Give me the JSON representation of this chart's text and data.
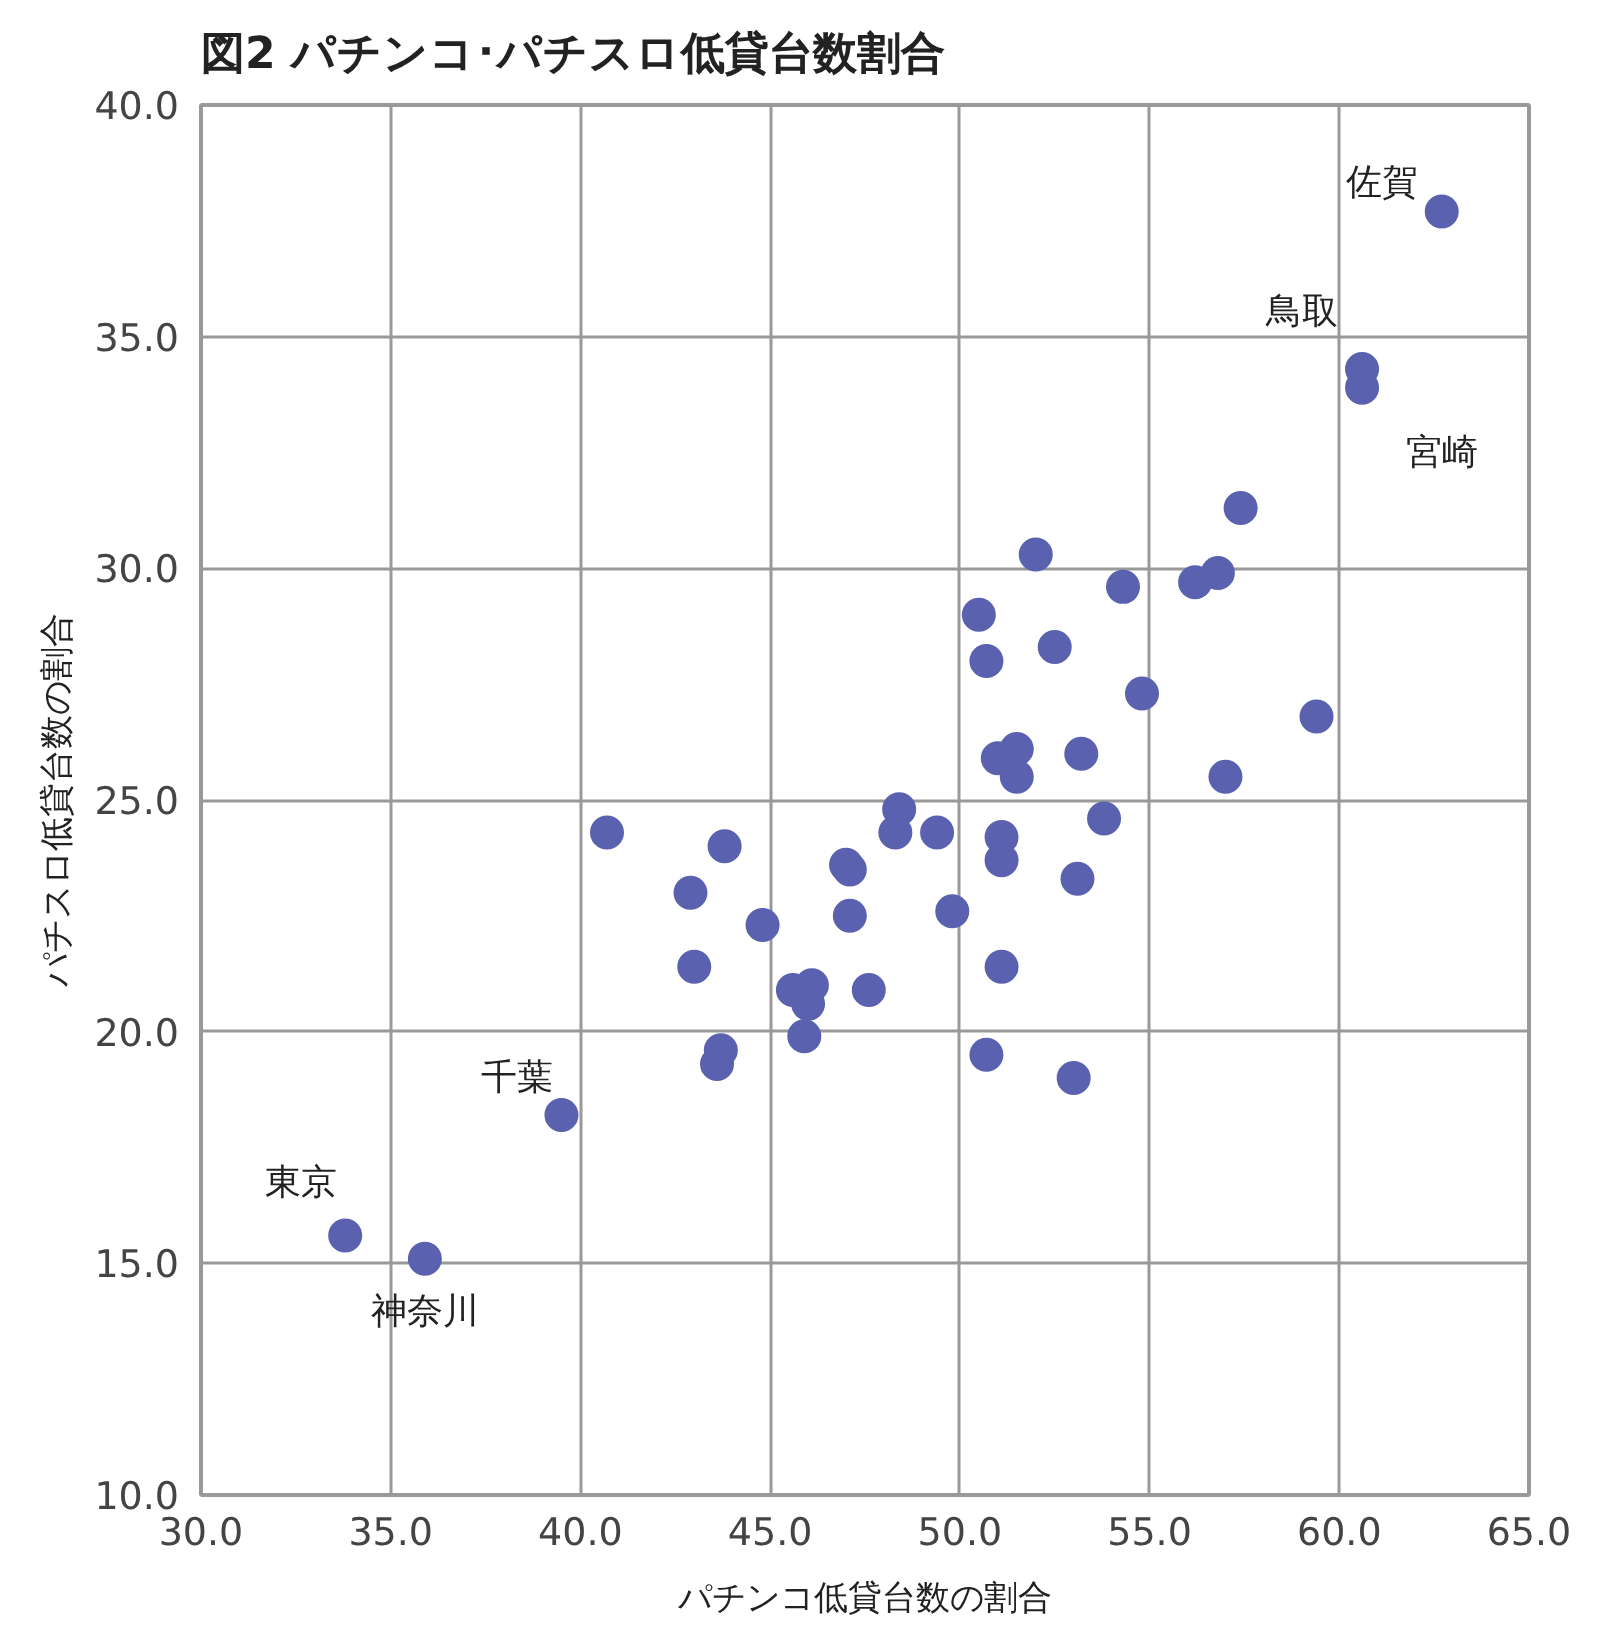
{
  "chart_data": {
    "type": "scatter",
    "title": "図2  パチンコ･パチスロ低貸台数割合",
    "xlabel": "パチンコ低貸台数の割合",
    "ylabel": "パチスロ低貸台数の割合",
    "x": [
      62.7,
      60.6,
      60.6,
      57.4,
      52.0,
      54.3,
      56.2,
      56.8,
      50.5,
      50.7,
      52.5,
      54.8,
      59.4,
      51.0,
      51.5,
      51.5,
      53.2,
      57.0,
      40.7,
      43.8,
      42.9,
      43.0,
      44.8,
      48.4,
      48.3,
      49.4,
      47.0,
      47.1,
      47.1,
      49.8,
      51.1,
      51.1,
      53.8,
      53.1,
      51.1,
      45.6,
      46.1,
      46.0,
      47.6,
      45.9,
      43.7,
      43.6,
      50.7,
      53.0,
      39.5,
      33.8,
      35.9
    ],
    "series": [
      {
        "color": "#5a62b0",
        "values": [
          37.7,
          34.3,
          33.9,
          31.3,
          30.3,
          29.6,
          29.7,
          29.9,
          29.0,
          28.0,
          28.3,
          27.3,
          26.8,
          25.9,
          26.1,
          25.5,
          26.0,
          25.5,
          24.3,
          24.0,
          23.0,
          21.4,
          22.3,
          24.8,
          24.3,
          24.3,
          23.6,
          23.5,
          22.5,
          22.6,
          24.2,
          23.7,
          24.6,
          23.3,
          21.4,
          20.9,
          21.0,
          20.6,
          20.9,
          19.9,
          19.6,
          19.3,
          19.5,
          19.0,
          18.2,
          15.6,
          15.1
        ]
      }
    ],
    "xlim": [
      30,
      65
    ],
    "ylim": [
      10,
      40
    ],
    "xticks": [
      {
        "value": 30,
        "label": "30.0"
      },
      {
        "value": 35,
        "label": "35.0"
      },
      {
        "value": 40,
        "label": "40.0"
      },
      {
        "value": 45,
        "label": "45.0"
      },
      {
        "value": 50,
        "label": "50.0"
      },
      {
        "value": 55,
        "label": "55.0"
      },
      {
        "value": 60,
        "label": "60.0"
      },
      {
        "value": 65,
        "label": "65.0"
      }
    ],
    "yticks": [
      {
        "value": 10,
        "label": "10.0"
      },
      {
        "value": 15,
        "label": "15.0"
      },
      {
        "value": 20,
        "label": "20.0"
      },
      {
        "value": 25,
        "label": "25.0"
      },
      {
        "value": 30,
        "label": "30.0"
      },
      {
        "value": 35,
        "label": "35.0"
      },
      {
        "value": 40,
        "label": "40.0"
      }
    ],
    "grid": true,
    "marker": "circle",
    "annotations": [
      {
        "text": "佐賀",
        "x": 62.7,
        "y": 37.7
      },
      {
        "text": "鳥取",
        "x": 60.6,
        "y": 34.3
      },
      {
        "text": "宮崎",
        "x": 60.6,
        "y": 33.9
      },
      {
        "text": "千葉",
        "x": 39.5,
        "y": 18.2
      },
      {
        "text": "東京",
        "x": 33.8,
        "y": 15.6
      },
      {
        "text": "神奈川",
        "x": 35.9,
        "y": 15.1
      }
    ]
  }
}
